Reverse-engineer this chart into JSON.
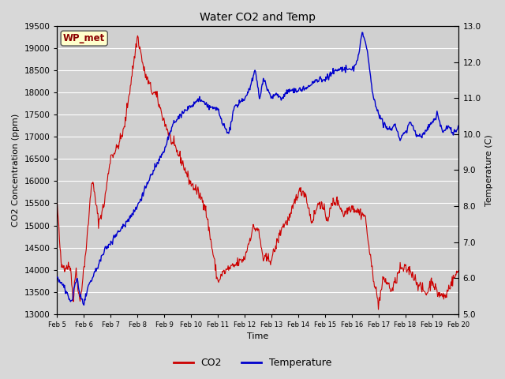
{
  "title": "Water CO2 and Temp",
  "xlabel": "Time",
  "ylabel_left": "CO2 Concentration (ppm)",
  "ylabel_right": "Temperature (C)",
  "ylim_left": [
    13000,
    19500
  ],
  "ylim_right": [
    5.0,
    13.0
  ],
  "yticks_left": [
    13000,
    13500,
    14000,
    14500,
    15000,
    15500,
    16000,
    16500,
    17000,
    17500,
    18000,
    18500,
    19000,
    19500
  ],
  "yticks_right": [
    5.0,
    6.0,
    7.0,
    8.0,
    9.0,
    10.0,
    11.0,
    12.0,
    13.0
  ],
  "background_color": "#d8d8d8",
  "plot_bg_color": "#d0d0d0",
  "grid_color": "#ffffff",
  "co2_color": "#cc0000",
  "temp_color": "#0000cc",
  "legend_label_co2": "CO2",
  "legend_label_temp": "Temperature",
  "annotation_text": "WP_met",
  "annotation_bg": "#ffffcc",
  "annotation_border": "#555555",
  "annotation_text_color": "#8b0000",
  "xtick_labels": [
    "Feb 5",
    "Feb 6",
    "Feb 7",
    "Feb 8",
    "Feb 9",
    "Feb 10",
    "Feb 11",
    "Feb 12",
    "Feb 13",
    "Feb 14",
    "Feb 15",
    "Feb 16",
    "Feb 17",
    "Feb 18",
    "Feb 19",
    "Feb 20"
  ],
  "num_points": 720
}
